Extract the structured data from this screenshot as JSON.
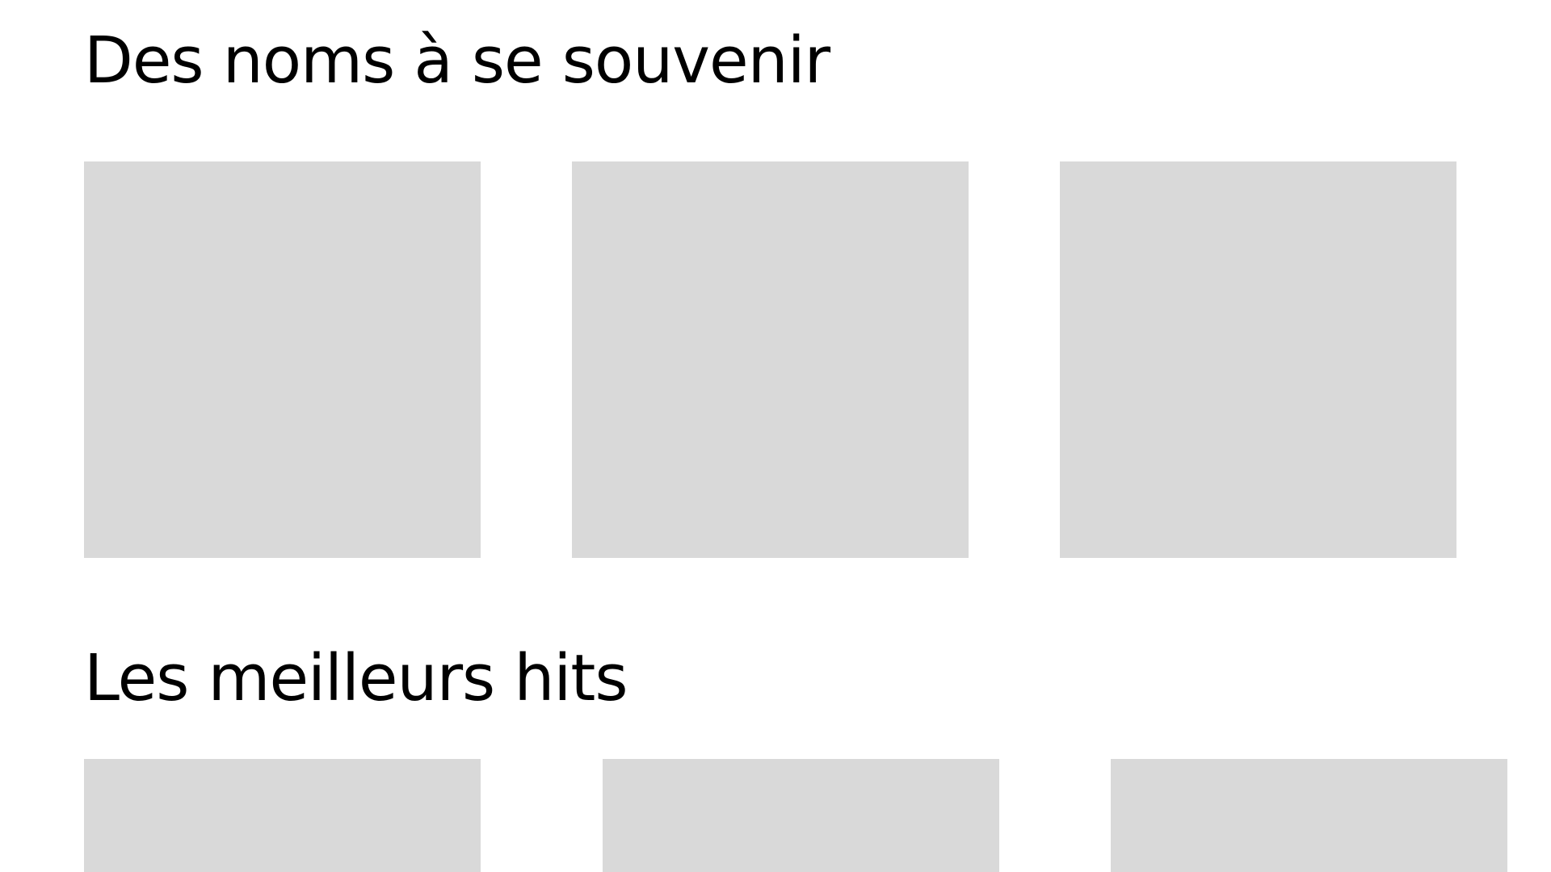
{
  "sections": [
    {
      "title": "Des noms à se souvenir",
      "item_count": 3
    },
    {
      "title": "Les meilleurs hits",
      "item_count": 3
    }
  ],
  "colors": {
    "background": "#ffffff",
    "placeholder": "#d9d9d9",
    "text": "#000000"
  }
}
